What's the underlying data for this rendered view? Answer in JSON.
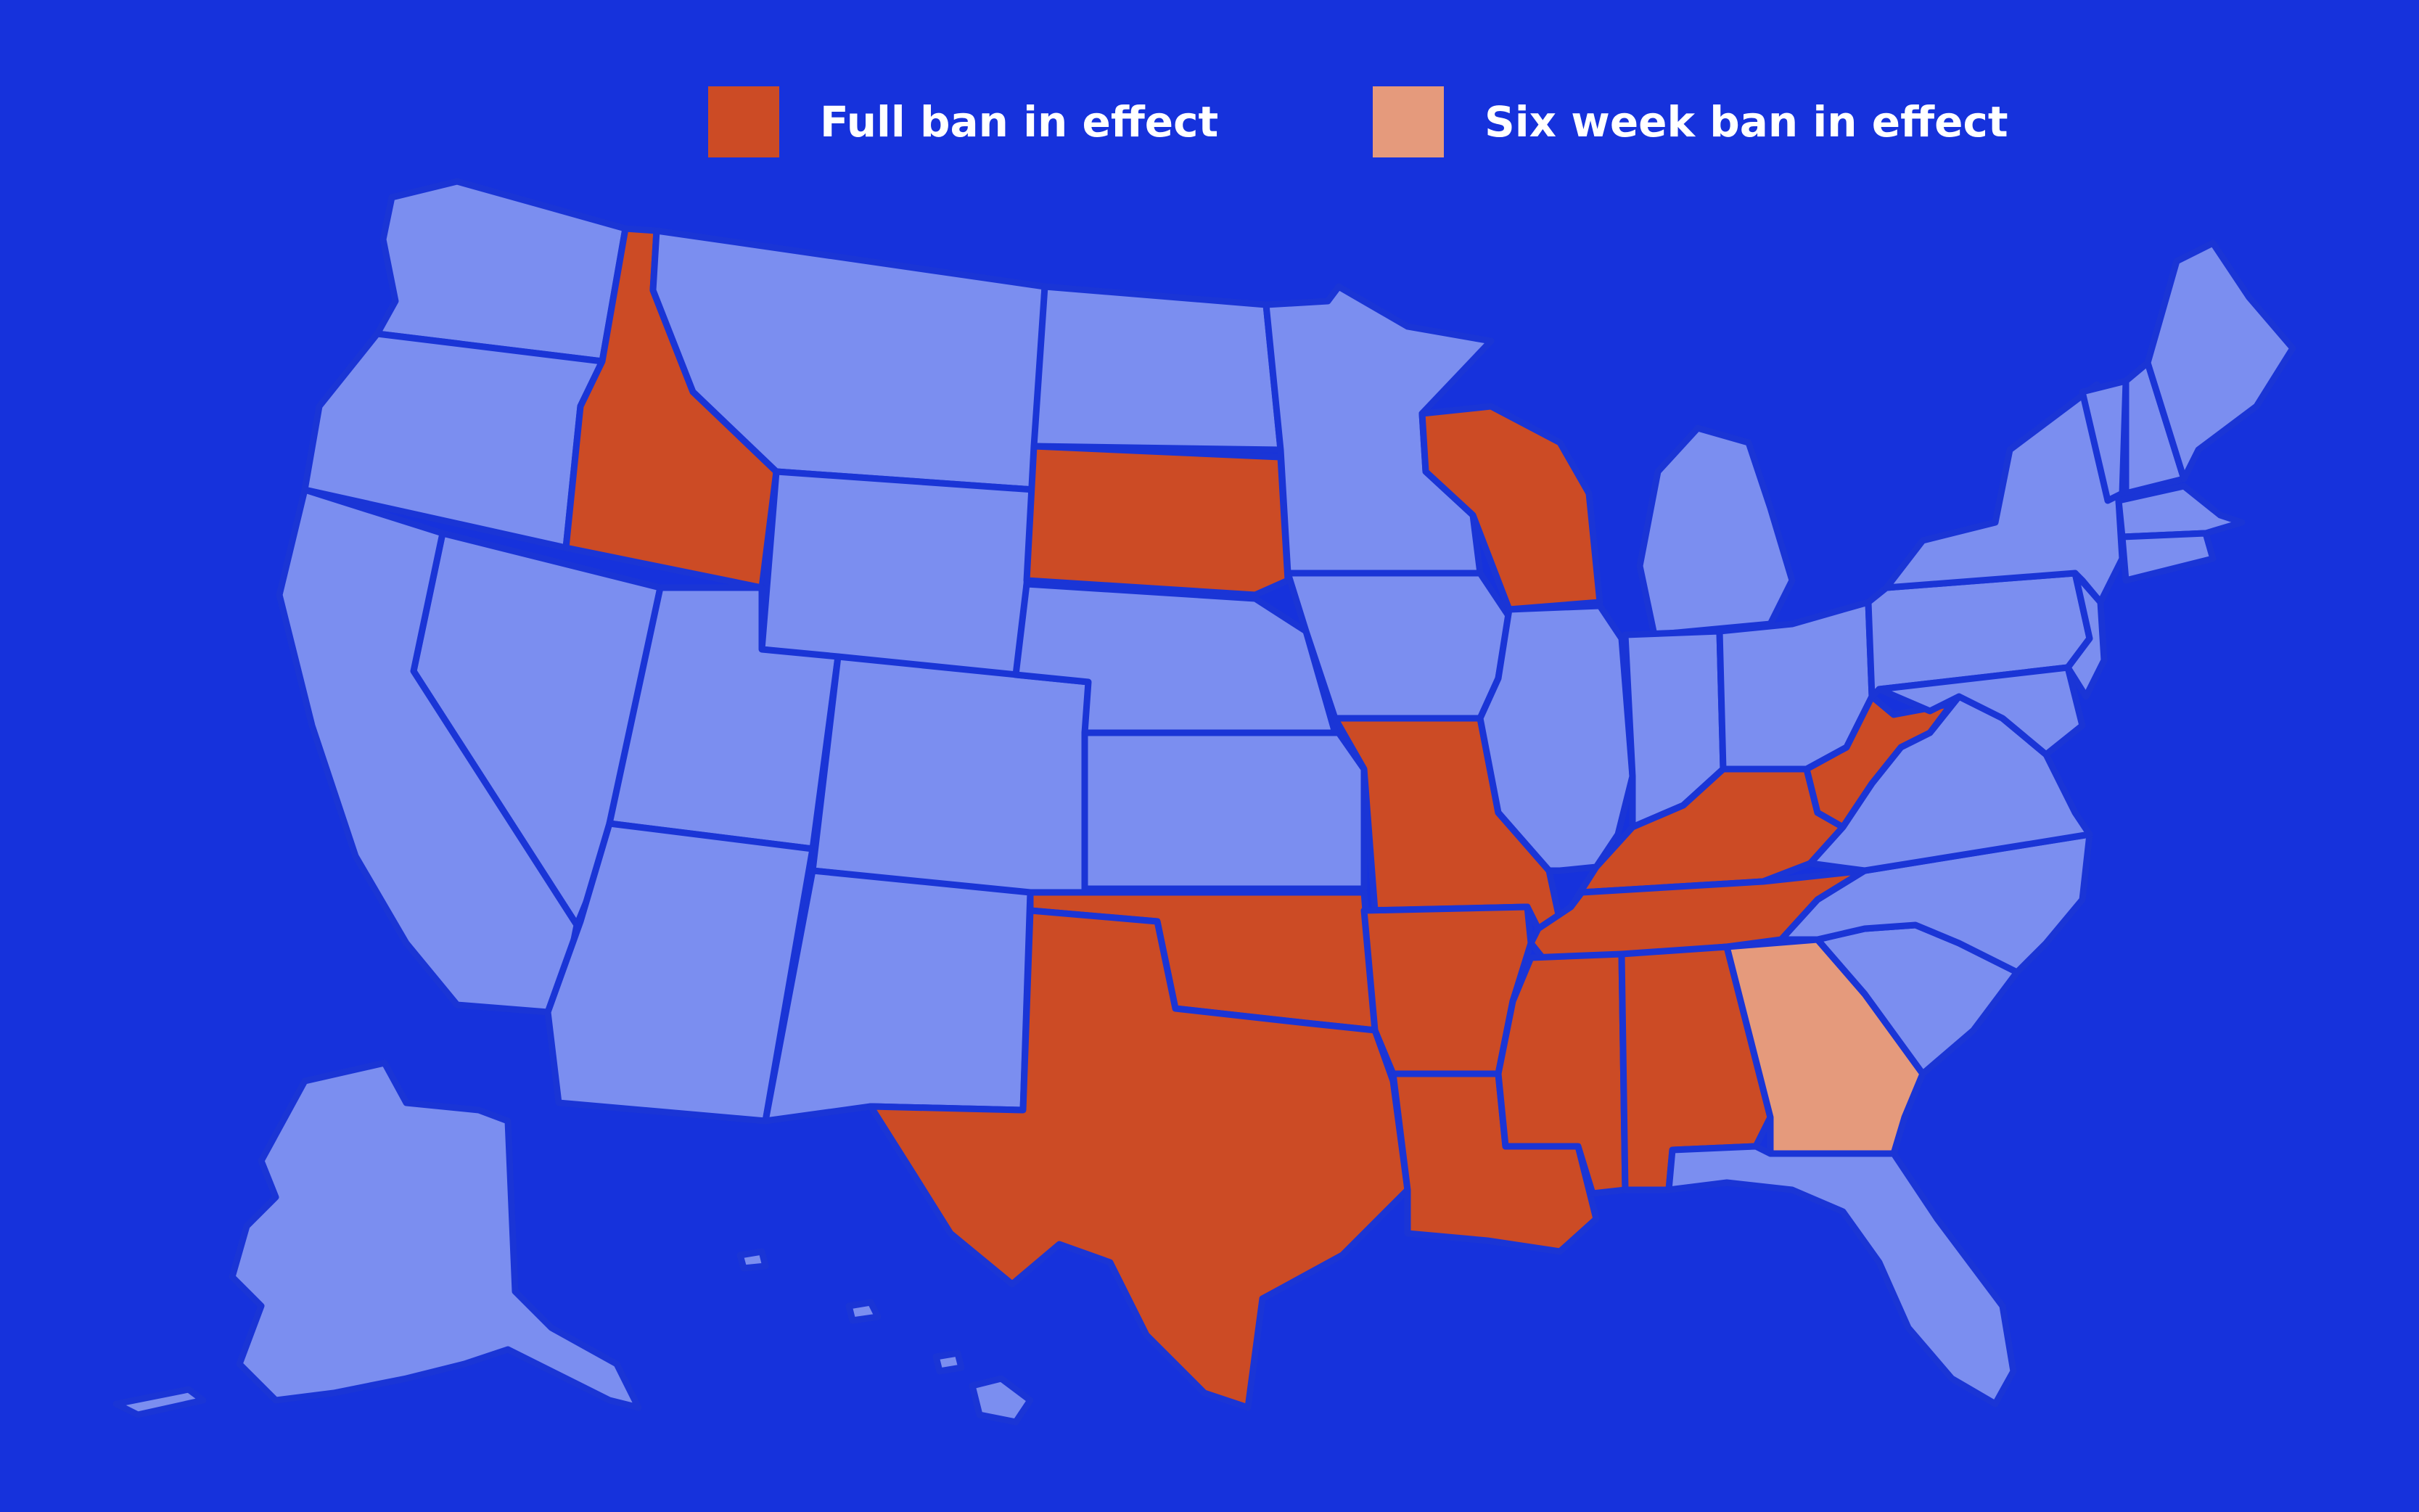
{
  "colors": {
    "background": "#1632dc",
    "state_default": "#7b8ef0",
    "state_border": "#1a35d6",
    "full_ban": "#cc4b25",
    "six_week_ban": "#e59a7c"
  },
  "legend": [
    {
      "label": "Full ban in effect",
      "color_key": "full_ban"
    },
    {
      "label": "Six week ban in effect",
      "color_key": "six_week_ban"
    }
  ],
  "full_ban_states": [
    "ID",
    "SD",
    "WI",
    "MO",
    "KY",
    "WV",
    "TN",
    "AR",
    "OK",
    "TX",
    "LA",
    "MS",
    "AL"
  ],
  "six_week_ban_states": [
    "GA"
  ]
}
